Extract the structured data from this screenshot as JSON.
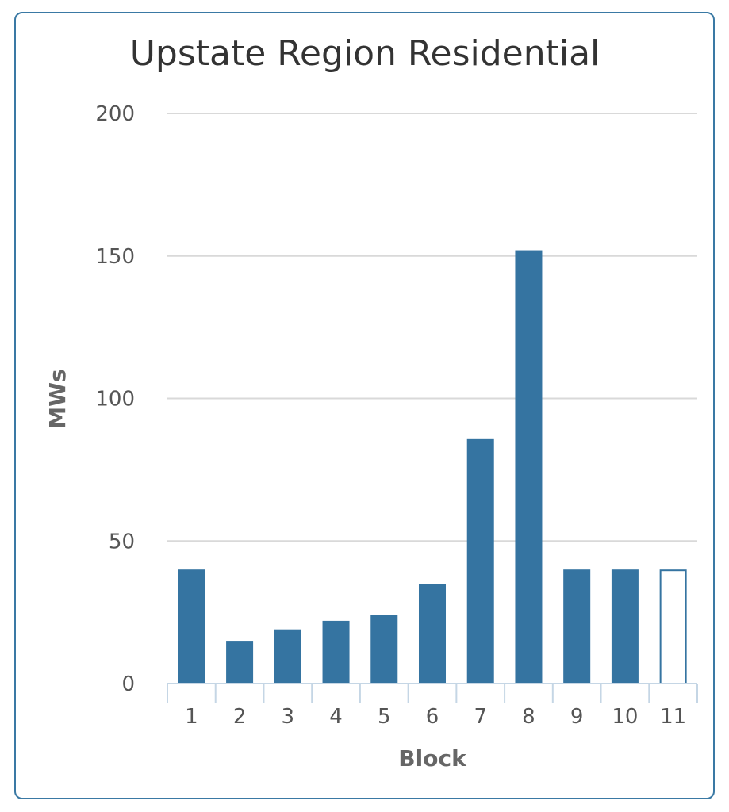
{
  "chart_data": {
    "type": "bar",
    "title": "Upstate Region Residential",
    "xlabel": "Block",
    "ylabel": "MWs",
    "categories": [
      "1",
      "2",
      "3",
      "4",
      "5",
      "6",
      "7",
      "8",
      "9",
      "10",
      "11"
    ],
    "values": [
      40,
      15,
      19,
      22,
      24,
      35,
      86,
      152,
      40,
      40,
      40
    ],
    "highlight_outline": [
      false,
      false,
      false,
      false,
      false,
      false,
      false,
      false,
      false,
      false,
      true
    ],
    "ylim": [
      0,
      200
    ],
    "yticks": [
      "0",
      "50",
      "100",
      "150",
      "200"
    ],
    "grid": true,
    "legend": "none",
    "bar_color": "#3574a1",
    "grid_color": "#d9d9d9",
    "axis_color": "#c5d6e5"
  }
}
